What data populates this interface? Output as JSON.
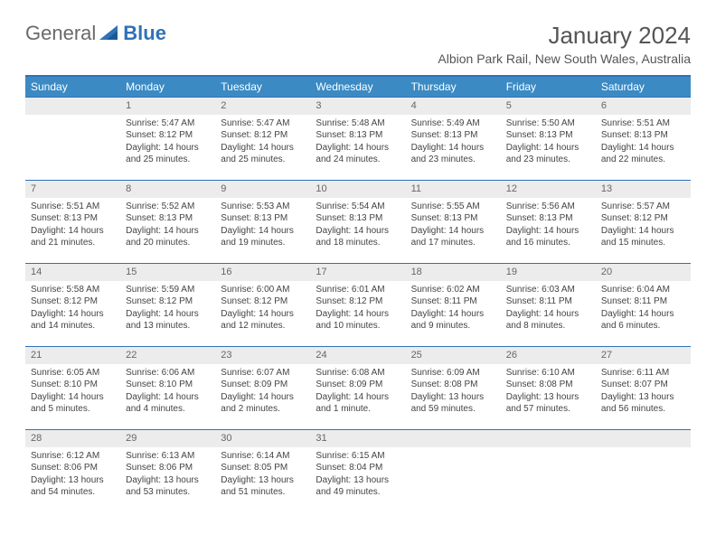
{
  "logo": {
    "part1": "General",
    "part2": "Blue"
  },
  "title": "January 2024",
  "subtitle": "Albion Park Rail, New South Wales, Australia",
  "colors": {
    "header_bg": "#3b8ac4",
    "border": "#2f72b8",
    "daynum_bg": "#ececec",
    "text": "#444444",
    "title_color": "#555555"
  },
  "weekdays": [
    "Sunday",
    "Monday",
    "Tuesday",
    "Wednesday",
    "Thursday",
    "Friday",
    "Saturday"
  ],
  "weeks": [
    [
      null,
      {
        "n": "1",
        "sr": "Sunrise: 5:47 AM",
        "ss": "Sunset: 8:12 PM",
        "dl1": "Daylight: 14 hours",
        "dl2": "and 25 minutes."
      },
      {
        "n": "2",
        "sr": "Sunrise: 5:47 AM",
        "ss": "Sunset: 8:12 PM",
        "dl1": "Daylight: 14 hours",
        "dl2": "and 25 minutes."
      },
      {
        "n": "3",
        "sr": "Sunrise: 5:48 AM",
        "ss": "Sunset: 8:13 PM",
        "dl1": "Daylight: 14 hours",
        "dl2": "and 24 minutes."
      },
      {
        "n": "4",
        "sr": "Sunrise: 5:49 AM",
        "ss": "Sunset: 8:13 PM",
        "dl1": "Daylight: 14 hours",
        "dl2": "and 23 minutes."
      },
      {
        "n": "5",
        "sr": "Sunrise: 5:50 AM",
        "ss": "Sunset: 8:13 PM",
        "dl1": "Daylight: 14 hours",
        "dl2": "and 23 minutes."
      },
      {
        "n": "6",
        "sr": "Sunrise: 5:51 AM",
        "ss": "Sunset: 8:13 PM",
        "dl1": "Daylight: 14 hours",
        "dl2": "and 22 minutes."
      }
    ],
    [
      {
        "n": "7",
        "sr": "Sunrise: 5:51 AM",
        "ss": "Sunset: 8:13 PM",
        "dl1": "Daylight: 14 hours",
        "dl2": "and 21 minutes."
      },
      {
        "n": "8",
        "sr": "Sunrise: 5:52 AM",
        "ss": "Sunset: 8:13 PM",
        "dl1": "Daylight: 14 hours",
        "dl2": "and 20 minutes."
      },
      {
        "n": "9",
        "sr": "Sunrise: 5:53 AM",
        "ss": "Sunset: 8:13 PM",
        "dl1": "Daylight: 14 hours",
        "dl2": "and 19 minutes."
      },
      {
        "n": "10",
        "sr": "Sunrise: 5:54 AM",
        "ss": "Sunset: 8:13 PM",
        "dl1": "Daylight: 14 hours",
        "dl2": "and 18 minutes."
      },
      {
        "n": "11",
        "sr": "Sunrise: 5:55 AM",
        "ss": "Sunset: 8:13 PM",
        "dl1": "Daylight: 14 hours",
        "dl2": "and 17 minutes."
      },
      {
        "n": "12",
        "sr": "Sunrise: 5:56 AM",
        "ss": "Sunset: 8:13 PM",
        "dl1": "Daylight: 14 hours",
        "dl2": "and 16 minutes."
      },
      {
        "n": "13",
        "sr": "Sunrise: 5:57 AM",
        "ss": "Sunset: 8:12 PM",
        "dl1": "Daylight: 14 hours",
        "dl2": "and 15 minutes."
      }
    ],
    [
      {
        "n": "14",
        "sr": "Sunrise: 5:58 AM",
        "ss": "Sunset: 8:12 PM",
        "dl1": "Daylight: 14 hours",
        "dl2": "and 14 minutes."
      },
      {
        "n": "15",
        "sr": "Sunrise: 5:59 AM",
        "ss": "Sunset: 8:12 PM",
        "dl1": "Daylight: 14 hours",
        "dl2": "and 13 minutes."
      },
      {
        "n": "16",
        "sr": "Sunrise: 6:00 AM",
        "ss": "Sunset: 8:12 PM",
        "dl1": "Daylight: 14 hours",
        "dl2": "and 12 minutes."
      },
      {
        "n": "17",
        "sr": "Sunrise: 6:01 AM",
        "ss": "Sunset: 8:12 PM",
        "dl1": "Daylight: 14 hours",
        "dl2": "and 10 minutes."
      },
      {
        "n": "18",
        "sr": "Sunrise: 6:02 AM",
        "ss": "Sunset: 8:11 PM",
        "dl1": "Daylight: 14 hours",
        "dl2": "and 9 minutes."
      },
      {
        "n": "19",
        "sr": "Sunrise: 6:03 AM",
        "ss": "Sunset: 8:11 PM",
        "dl1": "Daylight: 14 hours",
        "dl2": "and 8 minutes."
      },
      {
        "n": "20",
        "sr": "Sunrise: 6:04 AM",
        "ss": "Sunset: 8:11 PM",
        "dl1": "Daylight: 14 hours",
        "dl2": "and 6 minutes."
      }
    ],
    [
      {
        "n": "21",
        "sr": "Sunrise: 6:05 AM",
        "ss": "Sunset: 8:10 PM",
        "dl1": "Daylight: 14 hours",
        "dl2": "and 5 minutes."
      },
      {
        "n": "22",
        "sr": "Sunrise: 6:06 AM",
        "ss": "Sunset: 8:10 PM",
        "dl1": "Daylight: 14 hours",
        "dl2": "and 4 minutes."
      },
      {
        "n": "23",
        "sr": "Sunrise: 6:07 AM",
        "ss": "Sunset: 8:09 PM",
        "dl1": "Daylight: 14 hours",
        "dl2": "and 2 minutes."
      },
      {
        "n": "24",
        "sr": "Sunrise: 6:08 AM",
        "ss": "Sunset: 8:09 PM",
        "dl1": "Daylight: 14 hours",
        "dl2": "and 1 minute."
      },
      {
        "n": "25",
        "sr": "Sunrise: 6:09 AM",
        "ss": "Sunset: 8:08 PM",
        "dl1": "Daylight: 13 hours",
        "dl2": "and 59 minutes."
      },
      {
        "n": "26",
        "sr": "Sunrise: 6:10 AM",
        "ss": "Sunset: 8:08 PM",
        "dl1": "Daylight: 13 hours",
        "dl2": "and 57 minutes."
      },
      {
        "n": "27",
        "sr": "Sunrise: 6:11 AM",
        "ss": "Sunset: 8:07 PM",
        "dl1": "Daylight: 13 hours",
        "dl2": "and 56 minutes."
      }
    ],
    [
      {
        "n": "28",
        "sr": "Sunrise: 6:12 AM",
        "ss": "Sunset: 8:06 PM",
        "dl1": "Daylight: 13 hours",
        "dl2": "and 54 minutes."
      },
      {
        "n": "29",
        "sr": "Sunrise: 6:13 AM",
        "ss": "Sunset: 8:06 PM",
        "dl1": "Daylight: 13 hours",
        "dl2": "and 53 minutes."
      },
      {
        "n": "30",
        "sr": "Sunrise: 6:14 AM",
        "ss": "Sunset: 8:05 PM",
        "dl1": "Daylight: 13 hours",
        "dl2": "and 51 minutes."
      },
      {
        "n": "31",
        "sr": "Sunrise: 6:15 AM",
        "ss": "Sunset: 8:04 PM",
        "dl1": "Daylight: 13 hours",
        "dl2": "and 49 minutes."
      },
      null,
      null,
      null
    ]
  ]
}
